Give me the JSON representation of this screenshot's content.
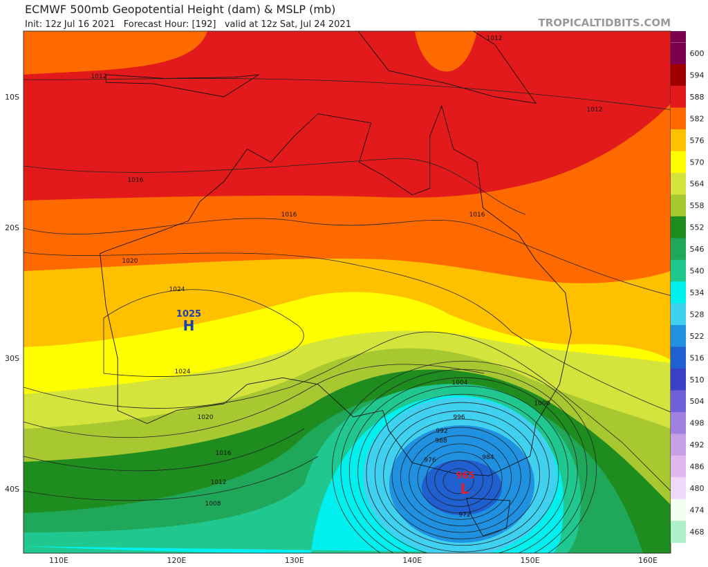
{
  "header": {
    "title": "ECMWF 500mb Geopotential Height (dam) & MSLP (mb)",
    "subtitle": "Init: 12z Jul 16 2021   Forecast Hour: [192]   valid at 12z Sat, Jul 24 2021",
    "source": "TROPICALTIDBITS.COM"
  },
  "map": {
    "lat_labels": [
      "10S",
      "20S",
      "30S",
      "40S"
    ],
    "lon_labels": [
      "110E",
      "120E",
      "130E",
      "140E",
      "150E",
      "160E"
    ],
    "colorbar": [
      600,
      594,
      588,
      582,
      576,
      570,
      564,
      558,
      552,
      546,
      540,
      534,
      528,
      522,
      516,
      510,
      504,
      498,
      492,
      486,
      480,
      474,
      468
    ],
    "high": {
      "value": "1025",
      "symbol": "H"
    },
    "low": {
      "value": "965",
      "symbol": "L"
    },
    "isobar_labels": [
      "1012",
      "1016",
      "1016",
      "1016",
      "1012",
      "1012",
      "1020",
      "1024",
      "1024",
      "1020",
      "1016",
      "1012",
      "1008",
      "1004",
      "1000",
      "996",
      "992",
      "988",
      "984",
      "976",
      "972"
    ]
  }
}
